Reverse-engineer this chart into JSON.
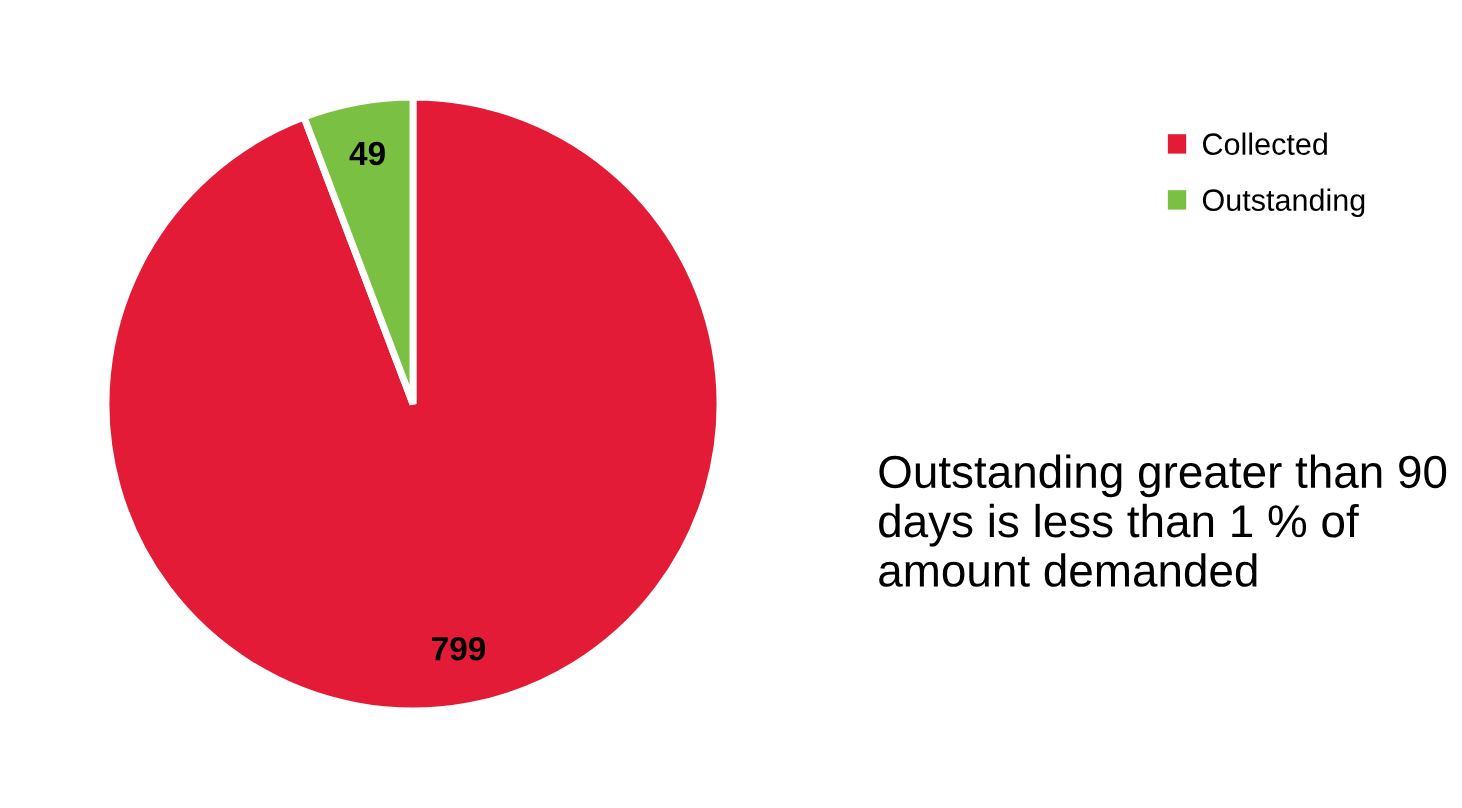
{
  "chart_data": {
    "type": "pie",
    "categories": [
      "Collected",
      "Outstanding"
    ],
    "values": [
      799,
      49
    ],
    "colors": [
      "#e31b37",
      "#7ac143"
    ],
    "data_labels": true,
    "legend": "top right",
    "annotations": [
      "Outstanding greater than 90 days is less than 1 % of amount demanded"
    ]
  }
}
